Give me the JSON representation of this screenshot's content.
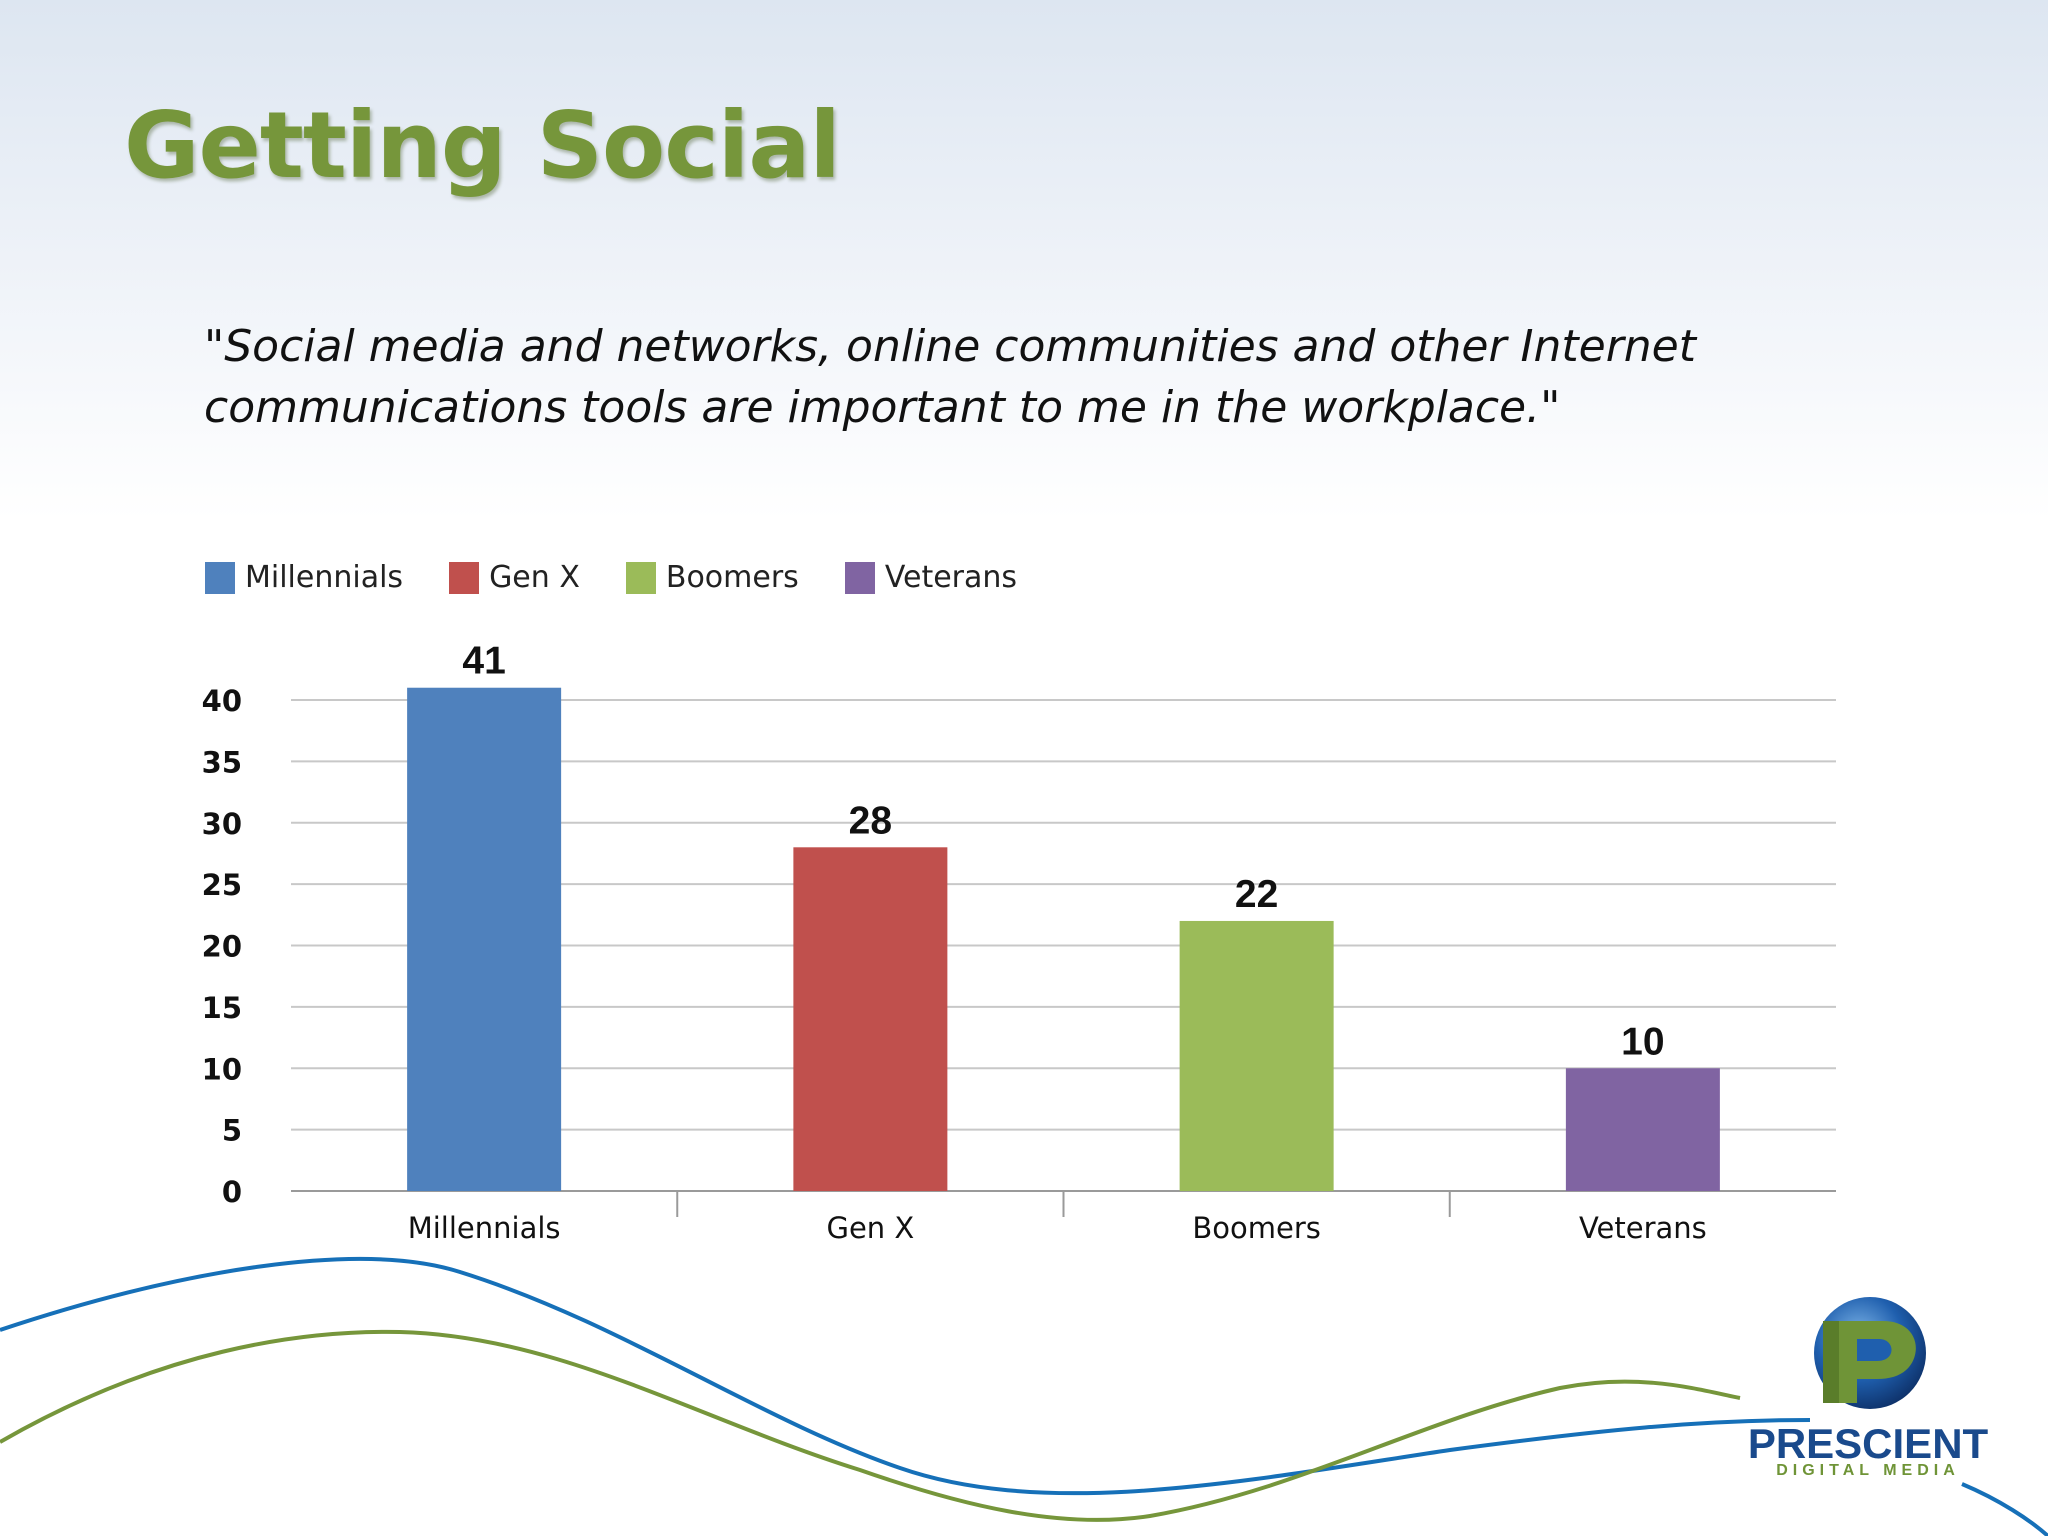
{
  "slide": {
    "title": "Getting Social",
    "quote": "\"Social media and networks, online communities and other Internet communications tools are important to me in the workplace.\""
  },
  "legend": [
    {
      "label": "Millennials",
      "color": "#4f81bd"
    },
    {
      "label": "Gen X",
      "color": "#c0504d"
    },
    {
      "label": "Boomers",
      "color": "#9bbb59"
    },
    {
      "label": "Veterans",
      "color": "#8064a2"
    }
  ],
  "chart_data": {
    "type": "bar",
    "categories": [
      "Millennials",
      "Gen X",
      "Boomers",
      "Veterans"
    ],
    "values": [
      41,
      28,
      22,
      10
    ],
    "colors": [
      "#4f81bd",
      "#c0504d",
      "#9bbb59",
      "#8064a2"
    ],
    "yticks": [
      0,
      5,
      10,
      15,
      20,
      25,
      30,
      35,
      40
    ],
    "ylim": [
      0,
      40
    ],
    "grid": true,
    "data_labels": true,
    "legend_position": "top-left"
  },
  "logo": {
    "name": "PRESCIENT",
    "tagline": "DIGITAL MEDIA",
    "icon": "prescient-p-globe-icon"
  },
  "decoration": {
    "blue_wave_color": "#1670b8",
    "green_wave_color": "#76963b"
  }
}
